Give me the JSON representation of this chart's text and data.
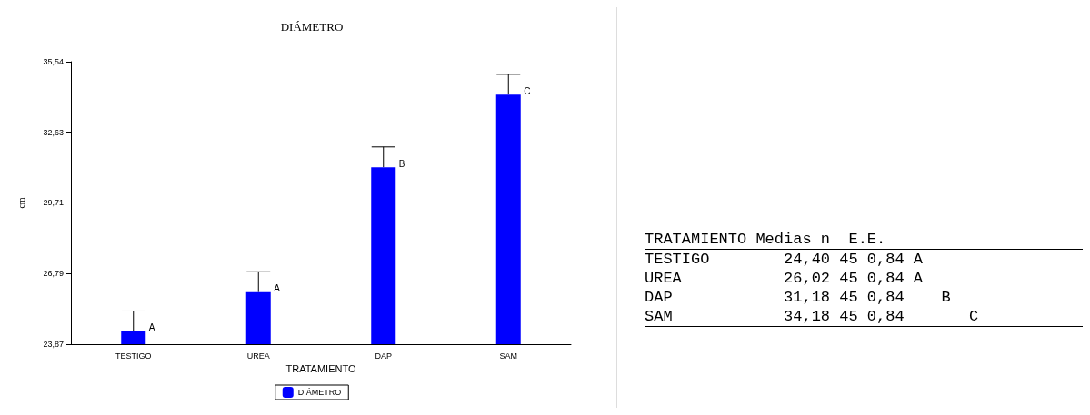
{
  "chart_data": [
    {
      "type": "bar",
      "title": "DIÁMETRO",
      "xlabel": "TRATAMIENTO",
      "ylabel": "cm",
      "categories": [
        "TESTIGO",
        "UREA",
        "DAP",
        "SAM"
      ],
      "series": [
        {
          "name": "DIÁMETRO",
          "color": "#0000ff",
          "values": [
            24.4,
            26.02,
            31.18,
            34.18
          ],
          "errors": [
            [
              24.4,
              25.24
            ],
            [
              26.02,
              26.86
            ],
            [
              31.18,
              32.02
            ],
            [
              34.18,
              35.02
            ]
          ]
        }
      ],
      "ylim": [
        23.87,
        35.54
      ],
      "yticks": [
        {
          "value": 23.87,
          "label": "23,87"
        },
        {
          "value": 26.79,
          "label": "26,79"
        },
        {
          "value": 29.71,
          "label": "29,71"
        },
        {
          "value": 32.63,
          "label": "32,63"
        },
        {
          "value": 35.54,
          "label": "35,54"
        }
      ],
      "annotations": [
        {
          "text": "A",
          "x": "TESTIGO",
          "y": 24.4
        },
        {
          "text": "A",
          "x": "UREA",
          "y": 26.02
        },
        {
          "text": "B",
          "x": "DAP",
          "y": 31.18
        },
        {
          "text": "C",
          "x": "SAM",
          "y": 34.18
        }
      ],
      "grid": false,
      "legend": "bottom"
    },
    {
      "type": "other",
      "annotations": [
        "TRATAMIENTO Medias n  E.E.",
        "TESTIGO        24,40 45 0,84 A      ",
        "UREA           26,02 45 0,84 A      ",
        "DAP            31,18 45 0,84    B   ",
        "SAM            34,18 45 0,84       C"
      ]
    }
  ]
}
